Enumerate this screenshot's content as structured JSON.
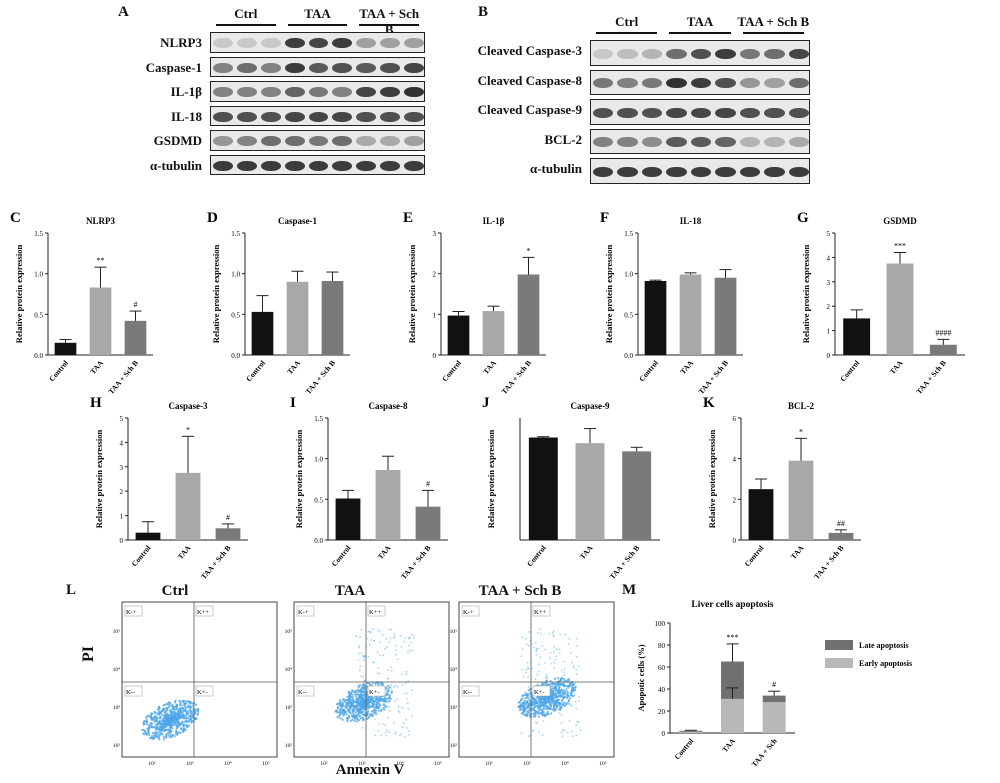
{
  "panels": {
    "A": {
      "letter": "A",
      "groups": [
        "Ctrl",
        "TAA",
        "TAA + Sch B"
      ],
      "rows": [
        {
          "label": "NLRP3",
          "levels": [
            0.15,
            0.15,
            0.15,
            0.85,
            0.8,
            0.85,
            0.35,
            0.35,
            0.35
          ]
        },
        {
          "label": "Caspase-1",
          "levels": [
            0.5,
            0.6,
            0.5,
            0.85,
            0.7,
            0.75,
            0.7,
            0.75,
            0.8
          ]
        },
        {
          "label": "IL-1β",
          "levels": [
            0.5,
            0.5,
            0.5,
            0.65,
            0.55,
            0.5,
            0.8,
            0.85,
            0.9
          ]
        },
        {
          "label": "IL-18",
          "levels": [
            0.75,
            0.75,
            0.75,
            0.8,
            0.8,
            0.8,
            0.75,
            0.75,
            0.75
          ]
        },
        {
          "label": "GSDMD",
          "levels": [
            0.4,
            0.5,
            0.6,
            0.6,
            0.55,
            0.6,
            0.3,
            0.3,
            0.35
          ]
        },
        {
          "label": "α-tubulin",
          "levels": [
            0.85,
            0.85,
            0.85,
            0.85,
            0.85,
            0.85,
            0.85,
            0.85,
            0.85
          ]
        }
      ]
    },
    "B": {
      "letter": "B",
      "groups": [
        "Ctrl",
        "TAA",
        "TAA + Sch B"
      ],
      "rows": [
        {
          "label": "Cleaved Caspase-3",
          "levels": [
            0.15,
            0.2,
            0.25,
            0.6,
            0.75,
            0.85,
            0.55,
            0.6,
            0.8
          ]
        },
        {
          "label": "Cleaved Caspase-8",
          "levels": [
            0.55,
            0.5,
            0.55,
            0.9,
            0.85,
            0.75,
            0.4,
            0.35,
            0.6
          ]
        },
        {
          "label": "Cleaved Caspase-9",
          "levels": [
            0.75,
            0.75,
            0.75,
            0.8,
            0.8,
            0.8,
            0.75,
            0.75,
            0.75
          ]
        },
        {
          "label": "BCL-2",
          "levels": [
            0.5,
            0.5,
            0.45,
            0.7,
            0.7,
            0.65,
            0.25,
            0.25,
            0.3
          ]
        },
        {
          "label": "α-tubulin",
          "levels": [
            0.85,
            0.85,
            0.85,
            0.85,
            0.85,
            0.85,
            0.85,
            0.85,
            0.85
          ]
        }
      ]
    },
    "L": {
      "letter": "L",
      "titles": [
        "Ctrl",
        "TAA",
        "TAA + Sch B"
      ],
      "ylabel": "PI",
      "xlabel": "Annexin V",
      "quadrants": [
        "K-+",
        "K++",
        "K--",
        "K+-"
      ],
      "ticks": [
        "10²",
        "10³",
        "10⁴",
        "10⁵"
      ]
    },
    "M_letter": "M"
  },
  "chart_data": [
    {
      "letter": "C",
      "type": "bar",
      "title": "NLRP3",
      "ylabel": "Relative protein expression",
      "categories": [
        "Control",
        "TAA",
        "TAA + Sch B"
      ],
      "values": [
        0.15,
        0.83,
        0.42
      ],
      "errors": [
        0.04,
        0.25,
        0.12
      ],
      "annotations": [
        "",
        "**",
        "#"
      ],
      "ylim": [
        0,
        1.5
      ],
      "yticks": [
        "0.0",
        "0.5",
        "1.0",
        "1.5"
      ],
      "ytick_values": [
        0,
        0.5,
        1.0,
        1.5
      ]
    },
    {
      "letter": "D",
      "type": "bar",
      "title": "Caspase-1",
      "ylabel": "Relative protein expression",
      "categories": [
        "Control",
        "TAA",
        "TAA + Sch B"
      ],
      "values": [
        0.53,
        0.9,
        0.91
      ],
      "errors": [
        0.2,
        0.13,
        0.11
      ],
      "annotations": [
        "",
        "",
        ""
      ],
      "ylim": [
        0,
        1.5
      ],
      "yticks": [
        "0.0",
        "0.5",
        "1.0",
        "1.5"
      ],
      "ytick_values": [
        0,
        0.5,
        1.0,
        1.5
      ]
    },
    {
      "letter": "E",
      "type": "bar",
      "title": "IL-1β",
      "ylabel": "Relative protein expression",
      "categories": [
        "Control",
        "TAA",
        "TAA + Sch B"
      ],
      "values": [
        0.97,
        1.08,
        1.98
      ],
      "errors": [
        0.1,
        0.12,
        0.42
      ],
      "annotations": [
        "",
        "",
        "*"
      ],
      "ylim": [
        0,
        3
      ],
      "yticks": [
        "0",
        "1",
        "2",
        "3"
      ],
      "ytick_values": [
        0,
        1,
        2,
        3
      ]
    },
    {
      "letter": "F",
      "type": "bar",
      "title": "IL-18",
      "ylabel": "Relative protein expression",
      "categories": [
        "Control",
        "TAA",
        "TAA + Sch B"
      ],
      "values": [
        0.91,
        0.99,
        0.95
      ],
      "errors": [
        0.01,
        0.02,
        0.1
      ],
      "annotations": [
        "",
        "",
        ""
      ],
      "ylim": [
        0,
        1.5
      ],
      "yticks": [
        "0.0",
        "0.5",
        "1.0",
        "1.5"
      ],
      "ytick_values": [
        0,
        0.5,
        1.0,
        1.5
      ]
    },
    {
      "letter": "G",
      "type": "bar",
      "title": "GSDMD",
      "ylabel": "Relative protein expression",
      "categories": [
        "Control",
        "TAA",
        "TAA + Sch B"
      ],
      "values": [
        1.5,
        3.75,
        0.42
      ],
      "errors": [
        0.35,
        0.45,
        0.22
      ],
      "annotations": [
        "",
        "***",
        "####"
      ],
      "ylim": [
        0,
        5
      ],
      "yticks": [
        "0",
        "1",
        "2",
        "3",
        "4",
        "5"
      ],
      "ytick_values": [
        0,
        1,
        2,
        3,
        4,
        5
      ]
    },
    {
      "letter": "H",
      "type": "bar",
      "title": "Caspase-3",
      "ylabel": "Relative protein expression",
      "categories": [
        "Control",
        "TAA",
        "TAA + Sch B"
      ],
      "values": [
        0.3,
        2.75,
        0.48
      ],
      "errors": [
        0.45,
        1.5,
        0.18
      ],
      "annotations": [
        "",
        "*",
        "#"
      ],
      "ylim": [
        0,
        5
      ],
      "yticks": [
        "0",
        "1",
        "2",
        "3",
        "4",
        "5"
      ],
      "ytick_values": [
        0,
        1,
        2,
        3,
        4,
        5
      ]
    },
    {
      "letter": "I",
      "type": "bar",
      "title": "Caspase-8",
      "ylabel": "Relative protein expression",
      "categories": [
        "Control",
        "TAA",
        "TAA + Sch B"
      ],
      "values": [
        0.51,
        0.86,
        0.41
      ],
      "errors": [
        0.1,
        0.17,
        0.2
      ],
      "annotations": [
        "",
        "",
        "#"
      ],
      "ylim": [
        0,
        1.5
      ],
      "yticks": [
        "0.0",
        "0.5",
        "1.0",
        "1.5"
      ],
      "ytick_values": [
        0,
        0.5,
        1.0,
        1.5
      ]
    },
    {
      "letter": "J",
      "type": "bar",
      "title": "Caspase-9",
      "ylabel": "Relative protein expression",
      "categories": [
        "Control",
        "TAA",
        "TAA + Sch B"
      ],
      "values": [
        1.26,
        1.19,
        1.09
      ],
      "errors": [
        0.01,
        0.18,
        0.05
      ],
      "annotations": [
        "",
        "",
        ""
      ],
      "ylim": [
        0,
        1.5
      ],
      "yticks": [],
      "ytick_values": []
    },
    {
      "letter": "K",
      "type": "bar",
      "title": "BCL-2",
      "ylabel": "Relative protein expression",
      "categories": [
        "Control",
        "TAA",
        "TAA + Sch B"
      ],
      "values": [
        2.5,
        3.9,
        0.35
      ],
      "errors": [
        0.5,
        1.1,
        0.15
      ],
      "annotations": [
        "",
        "*",
        "##"
      ],
      "ylim": [
        0,
        6
      ],
      "yticks": [
        "0",
        "2",
        "4",
        "6"
      ],
      "ytick_values": [
        0,
        2,
        4,
        6
      ]
    },
    {
      "letter": "M",
      "type": "stacked_bar",
      "title": "Liver cells apoptosis",
      "ylabel": "Apopotic cells (%)",
      "categories": [
        "Control",
        "TAA",
        "TAA + Sch"
      ],
      "series": [
        {
          "name": "Early apoptosis",
          "values": [
            1,
            31,
            28
          ],
          "color": "#b8b8b8"
        },
        {
          "name": "Late apoptosis",
          "values": [
            1,
            34,
            6
          ],
          "color": "#707070"
        }
      ],
      "errors": [
        0.5,
        16,
        4
      ],
      "inner_errors": [
        0,
        10,
        0
      ],
      "annotations": [
        "",
        "***",
        "#"
      ],
      "ylim": [
        0,
        100
      ],
      "yticks": [
        "0",
        "20",
        "40",
        "60",
        "80",
        "100"
      ],
      "ytick_values": [
        0,
        20,
        40,
        60,
        80,
        100
      ],
      "legend": "right"
    }
  ]
}
